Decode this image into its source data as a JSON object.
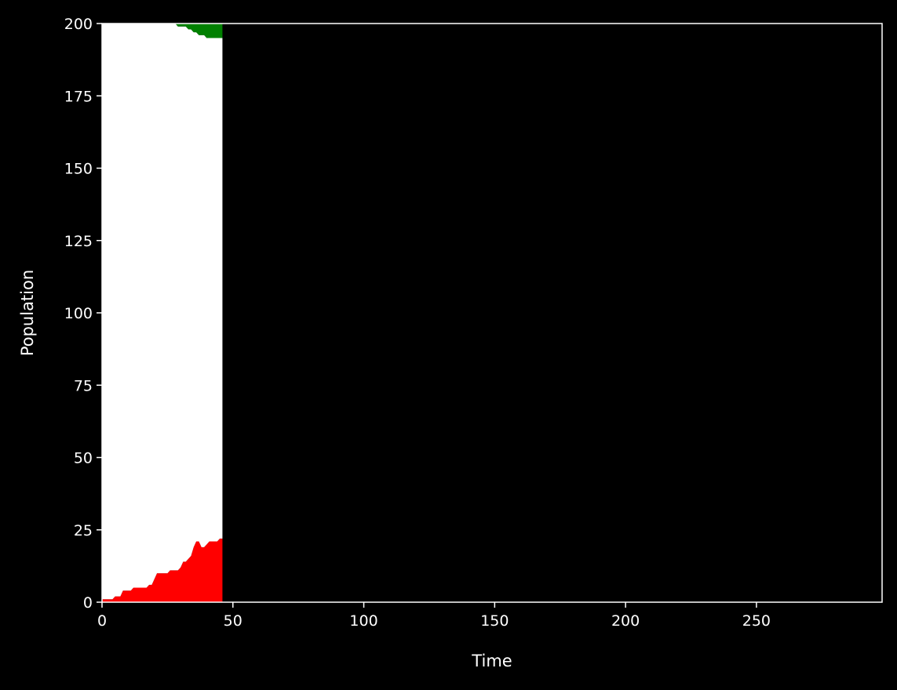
{
  "chart_data": {
    "type": "area",
    "title": "",
    "xlabel": "Time",
    "ylabel": "Population",
    "xlim": [
      0,
      298
    ],
    "ylim": [
      0,
      200
    ],
    "x_ticks": [
      0,
      50,
      100,
      150,
      200,
      250
    ],
    "y_ticks": [
      0,
      25,
      50,
      75,
      100,
      125,
      150,
      175,
      200
    ],
    "stacked": true,
    "background_color": "#000000",
    "foreground_color": "#ffffff",
    "grid": false,
    "legend": "none",
    "x": [
      0,
      1,
      2,
      3,
      4,
      5,
      6,
      7,
      8,
      9,
      10,
      11,
      12,
      13,
      14,
      15,
      16,
      17,
      18,
      19,
      20,
      21,
      22,
      23,
      24,
      25,
      26,
      27,
      28,
      29,
      30,
      31,
      32,
      33,
      34,
      35,
      36,
      37,
      38,
      39,
      40,
      41,
      42,
      43,
      44,
      45,
      46
    ],
    "series": [
      {
        "color": "#ff0000",
        "values": [
          1,
          1,
          1,
          1,
          1,
          2,
          2,
          2,
          4,
          4,
          4,
          4,
          5,
          5,
          5,
          5,
          5,
          5,
          6,
          6,
          8,
          10,
          10,
          10,
          10,
          10,
          11,
          11,
          11,
          11,
          12,
          14,
          14,
          15,
          16,
          19,
          21,
          21,
          19,
          19,
          20,
          21,
          21,
          21,
          21,
          22,
          22
        ]
      },
      {
        "color": "#ffffff",
        "values": [
          199,
          199,
          199,
          199,
          199,
          198,
          198,
          198,
          196,
          196,
          196,
          196,
          195,
          195,
          195,
          195,
          195,
          195,
          194,
          194,
          192,
          190,
          190,
          190,
          190,
          190,
          189,
          189,
          189,
          188,
          187,
          185,
          185,
          183,
          182,
          178,
          176,
          175,
          177,
          177,
          175,
          174,
          174,
          174,
          174,
          173,
          173
        ]
      },
      {
        "color": "#008000",
        "values": [
          0,
          0,
          0,
          0,
          0,
          0,
          0,
          0,
          0,
          0,
          0,
          0,
          0,
          0,
          0,
          0,
          0,
          0,
          0,
          0,
          0,
          0,
          0,
          0,
          0,
          0,
          0,
          0,
          0,
          1,
          1,
          1,
          1,
          2,
          2,
          3,
          3,
          4,
          4,
          4,
          5,
          5,
          5,
          5,
          5,
          5,
          5
        ]
      }
    ]
  }
}
